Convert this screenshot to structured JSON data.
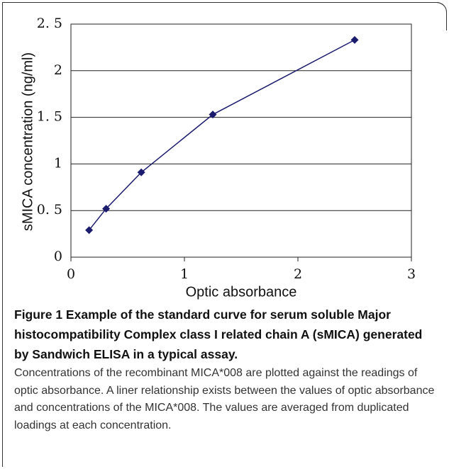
{
  "chart_data": {
    "type": "line",
    "x": [
      0.16,
      0.31,
      0.62,
      1.25,
      2.5
    ],
    "values": [
      0.29,
      0.52,
      0.91,
      1.53,
      2.33
    ],
    "color": "#1c1c6e",
    "xlabel": "Optic absorbance",
    "ylabel": "sMICA concentration (ng/ml)",
    "xlim": [
      0,
      3
    ],
    "xticks": [
      0,
      1,
      2,
      3
    ],
    "ylim": [
      0,
      2.5
    ],
    "yticks": [
      0,
      {
        "value": 0.5,
        "label": "0. 5"
      },
      1,
      {
        "value": 1.5,
        "label": "1. 5"
      },
      2,
      {
        "value": 2.5,
        "label": "2. 5"
      }
    ],
    "grid": true
  },
  "caption": {
    "title": "Figure 1 Example of the standard curve for serum soluble Major histocompatibility Complex class I related chain A (sMICA) generated by Sandwich ELISA in a typical assay.",
    "text": "Concentrations of the recombinant MICA*008 are plotted against the readings of optic absorbance. A liner relationship exists between the values of optic absorbance and concentrations of the MICA*008. The values are averaged from duplicated loadings at each concentration."
  }
}
